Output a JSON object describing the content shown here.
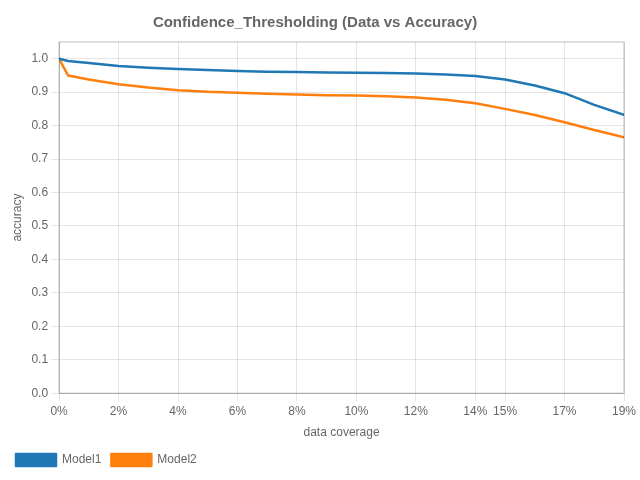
{
  "chart_data": {
    "type": "line",
    "title": "Confidence_Thresholding (Data vs Accuracy)",
    "xlabel": "data coverage",
    "ylabel": "accuracy",
    "xlim": [
      0,
      19
    ],
    "xticks": [
      {
        "value": 0,
        "label": "0%"
      },
      {
        "value": 2,
        "label": "2%"
      },
      {
        "value": 4,
        "label": "4%"
      },
      {
        "value": 6,
        "label": "6%"
      },
      {
        "value": 8,
        "label": "8%"
      },
      {
        "value": 10,
        "label": "10%"
      },
      {
        "value": 12,
        "label": "12%"
      },
      {
        "value": 14,
        "label": "14%"
      },
      {
        "value": 15,
        "label": "15%"
      },
      {
        "value": 17,
        "label": "17%"
      },
      {
        "value": 19,
        "label": "19%"
      }
    ],
    "ylim": [
      0.0,
      1.05
    ],
    "yticks": [
      {
        "value": 0.0,
        "label": "0.0"
      },
      0.1,
      0.2,
      0.3,
      0.4,
      0.5,
      0.6,
      0.7,
      0.8,
      0.9,
      {
        "value": 1.0,
        "label": "1.0"
      }
    ],
    "grid": true,
    "legend": "lower left",
    "series": [
      {
        "name": "Model1",
        "color": "#1f77b4",
        "x": [
          0,
          0.3,
          1,
          2,
          3,
          4,
          5,
          6,
          7,
          8,
          9,
          10,
          11,
          12,
          13,
          14,
          15,
          16,
          17,
          18,
          19
        ],
        "values": [
          1.0,
          0.993,
          0.987,
          0.978,
          0.973,
          0.969,
          0.966,
          0.963,
          0.961,
          0.96,
          0.959,
          0.958,
          0.957,
          0.956,
          0.953,
          0.948,
          0.938,
          0.92,
          0.897,
          0.862,
          0.832
        ]
      },
      {
        "name": "Model2",
        "color": "#ff7f0e",
        "x": [
          0,
          0.3,
          1,
          2,
          3,
          4,
          5,
          6,
          7,
          8,
          9,
          10,
          11,
          12,
          13,
          14,
          15,
          16,
          17,
          18,
          19
        ],
        "values": [
          1.0,
          0.95,
          0.938,
          0.924,
          0.914,
          0.906,
          0.901,
          0.898,
          0.895,
          0.893,
          0.891,
          0.89,
          0.888,
          0.884,
          0.877,
          0.867,
          0.85,
          0.832,
          0.81,
          0.787,
          0.765
        ]
      }
    ]
  }
}
